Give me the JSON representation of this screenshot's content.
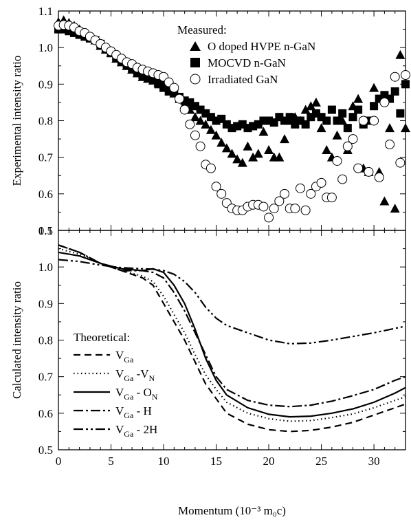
{
  "chart_data": [
    {
      "type": "scatter",
      "ylabel": "Experimental intensity ratio",
      "xlim": [
        0,
        33
      ],
      "ylim": [
        0.5,
        1.1
      ],
      "x_ticks": [
        "0",
        "5",
        "10",
        "15",
        "20",
        "25",
        "30"
      ],
      "y_ticks": [
        "0.5",
        "0.6",
        "0.7",
        "0.8",
        "0.9",
        "1.0",
        "1.1"
      ],
      "legend_title": "Measured:",
      "legend_position": "top-right",
      "series": [
        {
          "name": "O doped HVPE n-GaN",
          "marker": "filled-triangle",
          "points": [
            [
              0,
              1.07
            ],
            [
              0.5,
              1.075
            ],
            [
              1,
              1.068
            ],
            [
              1.5,
              1.06
            ],
            [
              2,
              1.05
            ],
            [
              2.5,
              1.04
            ],
            [
              3,
              1.03
            ],
            [
              3.5,
              1.02
            ],
            [
              4,
              1.005
            ],
            [
              4.5,
              0.995
            ],
            [
              5,
              0.985
            ],
            [
              5.5,
              0.97
            ],
            [
              6,
              0.96
            ],
            [
              6.5,
              0.95
            ],
            [
              7,
              0.94
            ],
            [
              7.5,
              0.93
            ],
            [
              8,
              0.92
            ],
            [
              8.5,
              0.915
            ],
            [
              9,
              0.91
            ],
            [
              9.5,
              0.905
            ],
            [
              10,
              0.9
            ],
            [
              10.5,
              0.89
            ],
            [
              11,
              0.875
            ],
            [
              11.5,
              0.86
            ],
            [
              12,
              0.845
            ],
            [
              12.5,
              0.83
            ],
            [
              13,
              0.81
            ],
            [
              13.5,
              0.8
            ],
            [
              14,
              0.79
            ],
            [
              14.5,
              0.775
            ],
            [
              15,
              0.76
            ],
            [
              15.5,
              0.74
            ],
            [
              16,
              0.725
            ],
            [
              16.5,
              0.71
            ],
            [
              17,
              0.695
            ],
            [
              17.5,
              0.685
            ],
            [
              18,
              0.73
            ],
            [
              18.5,
              0.7
            ],
            [
              19,
              0.71
            ],
            [
              19.5,
              0.77
            ],
            [
              20,
              0.72
            ],
            [
              20.5,
              0.7
            ],
            [
              21,
              0.7
            ],
            [
              21.5,
              0.75
            ],
            [
              22,
              0.8
            ],
            [
              22.5,
              0.81
            ],
            [
              23,
              0.8
            ],
            [
              23.5,
              0.83
            ],
            [
              24,
              0.84
            ],
            [
              24.5,
              0.85
            ],
            [
              25,
              0.78
            ],
            [
              25.5,
              0.72
            ],
            [
              26,
              0.7
            ],
            [
              26.5,
              0.76
            ],
            [
              27,
              0.8
            ],
            [
              27.5,
              0.72
            ],
            [
              28,
              0.84
            ],
            [
              28.5,
              0.86
            ],
            [
              29,
              0.67
            ],
            [
              29.5,
              0.66
            ],
            [
              30,
              0.89
            ],
            [
              30.5,
              0.66
            ],
            [
              31,
              0.58
            ],
            [
              31.5,
              0.78
            ],
            [
              32,
              0.56
            ],
            [
              32.5,
              0.98
            ],
            [
              33,
              0.78
            ]
          ]
        },
        {
          "name": "MOCVD n-GaN",
          "marker": "filled-square",
          "points": [
            [
              0,
              1.05
            ],
            [
              0.5,
              1.05
            ],
            [
              1,
              1.045
            ],
            [
              1.5,
              1.04
            ],
            [
              2,
              1.035
            ],
            [
              2.5,
              1.03
            ],
            [
              3,
              1.025
            ],
            [
              3.5,
              1.02
            ],
            [
              4,
              1.01
            ],
            [
              4.5,
              0.995
            ],
            [
              5,
              0.985
            ],
            [
              5.5,
              0.975
            ],
            [
              6,
              0.965
            ],
            [
              6.5,
              0.955
            ],
            [
              7,
              0.945
            ],
            [
              7.5,
              0.935
            ],
            [
              8,
              0.925
            ],
            [
              8.5,
              0.92
            ],
            [
              9,
              0.915
            ],
            [
              9.5,
              0.9
            ],
            [
              10,
              0.89
            ],
            [
              10.5,
              0.88
            ],
            [
              11,
              0.875
            ],
            [
              11.5,
              0.865
            ],
            [
              12,
              0.855
            ],
            [
              12.5,
              0.85
            ],
            [
              13,
              0.84
            ],
            [
              13.5,
              0.83
            ],
            [
              14,
              0.82
            ],
            [
              14.5,
              0.81
            ],
            [
              15,
              0.8
            ],
            [
              15.5,
              0.805
            ],
            [
              16,
              0.79
            ],
            [
              16.5,
              0.78
            ],
            [
              17,
              0.785
            ],
            [
              17.5,
              0.79
            ],
            [
              18,
              0.78
            ],
            [
              18.5,
              0.785
            ],
            [
              19,
              0.79
            ],
            [
              19.5,
              0.8
            ],
            [
              20,
              0.8
            ],
            [
              20.5,
              0.795
            ],
            [
              21,
              0.81
            ],
            [
              21.5,
              0.8
            ],
            [
              22,
              0.81
            ],
            [
              22.5,
              0.79
            ],
            [
              23,
              0.8
            ],
            [
              23.5,
              0.79
            ],
            [
              24,
              0.81
            ],
            [
              24.5,
              0.82
            ],
            [
              25,
              0.81
            ],
            [
              25.5,
              0.8
            ],
            [
              26,
              0.83
            ],
            [
              26.5,
              0.8
            ],
            [
              27,
              0.82
            ],
            [
              27.5,
              0.78
            ],
            [
              28,
              0.81
            ],
            [
              28.5,
              0.83
            ],
            [
              29,
              0.79
            ],
            [
              29.5,
              0.8
            ],
            [
              30,
              0.84
            ],
            [
              30.5,
              0.86
            ],
            [
              31,
              0.87
            ],
            [
              31.5,
              0.86
            ],
            [
              32,
              0.88
            ],
            [
              32.5,
              0.82
            ],
            [
              33,
              0.9
            ]
          ]
        },
        {
          "name": "Irradiated GaN",
          "marker": "open-circle",
          "points": [
            [
              0,
              1.06
            ],
            [
              0.5,
              1.062
            ],
            [
              1,
              1.06
            ],
            [
              1.5,
              1.055
            ],
            [
              2,
              1.045
            ],
            [
              2.5,
              1.04
            ],
            [
              3,
              1.03
            ],
            [
              3.5,
              1.02
            ],
            [
              4,
              1.01
            ],
            [
              4.5,
              1.0
            ],
            [
              5,
              0.99
            ],
            [
              5.5,
              0.98
            ],
            [
              6,
              0.97
            ],
            [
              6.5,
              0.96
            ],
            [
              7,
              0.955
            ],
            [
              7.5,
              0.945
            ],
            [
              8,
              0.94
            ],
            [
              8.5,
              0.935
            ],
            [
              9,
              0.93
            ],
            [
              9.5,
              0.925
            ],
            [
              10,
              0.92
            ],
            [
              10.5,
              0.905
            ],
            [
              11,
              0.89
            ],
            [
              11.5,
              0.86
            ],
            [
              12,
              0.83
            ],
            [
              12.5,
              0.79
            ],
            [
              13,
              0.76
            ],
            [
              13.5,
              0.73
            ],
            [
              14,
              0.68
            ],
            [
              14.5,
              0.67
            ],
            [
              15,
              0.62
            ],
            [
              15.5,
              0.6
            ],
            [
              16,
              0.575
            ],
            [
              16.5,
              0.56
            ],
            [
              17,
              0.555
            ],
            [
              17.5,
              0.555
            ],
            [
              18,
              0.565
            ],
            [
              18.5,
              0.57
            ],
            [
              19,
              0.57
            ],
            [
              19.5,
              0.565
            ],
            [
              20,
              0.535
            ],
            [
              20.5,
              0.56
            ],
            [
              21,
              0.58
            ],
            [
              21.5,
              0.6
            ],
            [
              22,
              0.56
            ],
            [
              22.5,
              0.56
            ],
            [
              23,
              0.615
            ],
            [
              23.5,
              0.555
            ],
            [
              24,
              0.6
            ],
            [
              24.5,
              0.62
            ],
            [
              25,
              0.63
            ],
            [
              25.5,
              0.59
            ],
            [
              26,
              0.59
            ],
            [
              26.5,
              0.69
            ],
            [
              27,
              0.64
            ],
            [
              27.5,
              0.73
            ],
            [
              28,
              0.75
            ],
            [
              28.5,
              0.67
            ],
            [
              29,
              0.8
            ],
            [
              29.5,
              0.66
            ],
            [
              30,
              0.8
            ],
            [
              30.5,
              0.645
            ],
            [
              31,
              0.85
            ],
            [
              31.5,
              0.735
            ],
            [
              32,
              0.92
            ],
            [
              32.5,
              0.685
            ],
            [
              33,
              0.925
            ]
          ]
        }
      ]
    },
    {
      "type": "line",
      "xlabel": "Momentum (10⁻³ m₀c)",
      "ylabel": "Calculated intensity ratio",
      "xlim": [
        0,
        33
      ],
      "ylim": [
        0.5,
        1.1
      ],
      "x_ticks": [
        "0",
        "5",
        "10",
        "15",
        "20",
        "25",
        "30"
      ],
      "y_ticks": [
        "0.5",
        "0.6",
        "0.7",
        "0.8",
        "0.9",
        "1.0",
        "1.1"
      ],
      "legend_title": "Theoretical:",
      "legend_position": "bottom-left",
      "x": [
        0,
        2,
        4,
        6,
        8,
        9,
        10,
        11,
        12,
        13,
        14,
        15,
        16,
        18,
        20,
        22,
        24,
        26,
        28,
        30,
        32,
        33
      ],
      "series": [
        {
          "name": "V_Ga",
          "label_main": "V",
          "label_sub": "Ga",
          "label_rest": "",
          "label_rest_sub": "",
          "dash": "10,6",
          "values": [
            1.06,
            1.04,
            1.01,
            0.99,
            0.97,
            0.95,
            0.9,
            0.85,
            0.8,
            0.74,
            0.68,
            0.64,
            0.6,
            0.57,
            0.555,
            0.55,
            0.553,
            0.562,
            0.575,
            0.595,
            0.615,
            0.625
          ]
        },
        {
          "name": "V_Ga-V_N",
          "label_main": "V",
          "label_sub": "Ga",
          "label_rest": " -V",
          "label_rest_sub": "N",
          "dash": "1.5,4",
          "values": [
            1.05,
            1.035,
            1.01,
            0.99,
            0.975,
            0.96,
            0.92,
            0.87,
            0.82,
            0.76,
            0.705,
            0.665,
            0.63,
            0.6,
            0.585,
            0.578,
            0.58,
            0.588,
            0.598,
            0.615,
            0.635,
            0.645
          ]
        },
        {
          "name": "V_Ga-O_N",
          "label_main": "V",
          "label_sub": "Ga",
          "label_rest": " - O",
          "label_rest_sub": "N",
          "dash": "",
          "values": [
            1.04,
            1.03,
            1.01,
            0.995,
            0.99,
            0.995,
            0.985,
            0.95,
            0.9,
            0.83,
            0.75,
            0.69,
            0.65,
            0.615,
            0.597,
            0.59,
            0.592,
            0.6,
            0.612,
            0.63,
            0.655,
            0.67
          ]
        },
        {
          "name": "V_Ga-H",
          "label_main": "V",
          "label_sub": "Ga",
          "label_rest": " - H",
          "label_rest_sub": "",
          "dash": "14,4,3,4",
          "values": [
            1.06,
            1.04,
            1.01,
            0.99,
            0.99,
            0.985,
            0.97,
            0.93,
            0.88,
            0.82,
            0.76,
            0.7,
            0.665,
            0.635,
            0.622,
            0.618,
            0.622,
            0.633,
            0.648,
            0.665,
            0.69,
            0.7
          ]
        },
        {
          "name": "V_Ga-2H",
          "label_main": "V",
          "label_sub": "Ga",
          "label_rest": " - 2H",
          "label_rest_sub": "",
          "dash": "14,4,3,4,3,4",
          "values": [
            1.02,
            1.015,
            1.005,
            0.998,
            0.995,
            0.994,
            0.99,
            0.98,
            0.96,
            0.93,
            0.89,
            0.86,
            0.84,
            0.82,
            0.8,
            0.79,
            0.792,
            0.8,
            0.81,
            0.82,
            0.832,
            0.838
          ]
        }
      ]
    }
  ]
}
